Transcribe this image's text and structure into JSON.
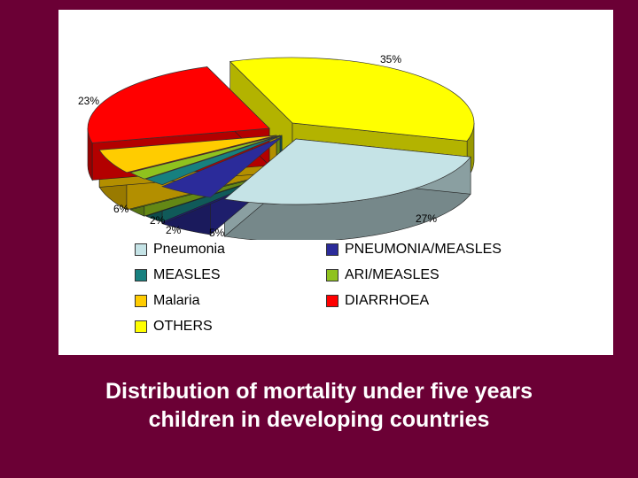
{
  "caption": {
    "line1": "Distribution of mortality under five years",
    "line2": "children in developing countries"
  },
  "chart_data": {
    "type": "pie",
    "style": "3d-exploded",
    "title": "",
    "slices": [
      {
        "label": "OTHERS",
        "value": 35,
        "display": "35%",
        "color": "#ffff00"
      },
      {
        "label": "Pneumonia",
        "value": 27,
        "display": "27%",
        "color": "#c5e3e6"
      },
      {
        "label": "PNEUMONIA/MEASLES",
        "value": 5,
        "display": "5%",
        "color": "#2b2b9a"
      },
      {
        "label": "MEASLES",
        "value": 2,
        "display": "2%",
        "color": "#17807f"
      },
      {
        "label": "ARI/MEASLES",
        "value": 2,
        "display": "2%",
        "color": "#8fc21e"
      },
      {
        "label": "Malaria",
        "value": 6,
        "display": "6%",
        "color": "#ffcc00"
      },
      {
        "label": "DIARRHOEA",
        "value": 23,
        "display": "23%",
        "color": "#ff0000"
      }
    ],
    "legend_position": "bottom",
    "legend": [
      {
        "label": "Pneumonia",
        "color": "#c5e3e6"
      },
      {
        "label": "PNEUMONIA/MEASLES",
        "color": "#2b2b9a"
      },
      {
        "label": "MEASLES",
        "color": "#17807f"
      },
      {
        "label": "ARI/MEASLES",
        "color": "#8fc21e"
      },
      {
        "label": "Malaria",
        "color": "#ffcc00"
      },
      {
        "label": "DIARRHOEA",
        "color": "#ff0000"
      },
      {
        "label": "OTHERS",
        "color": "#ffff00"
      }
    ]
  }
}
